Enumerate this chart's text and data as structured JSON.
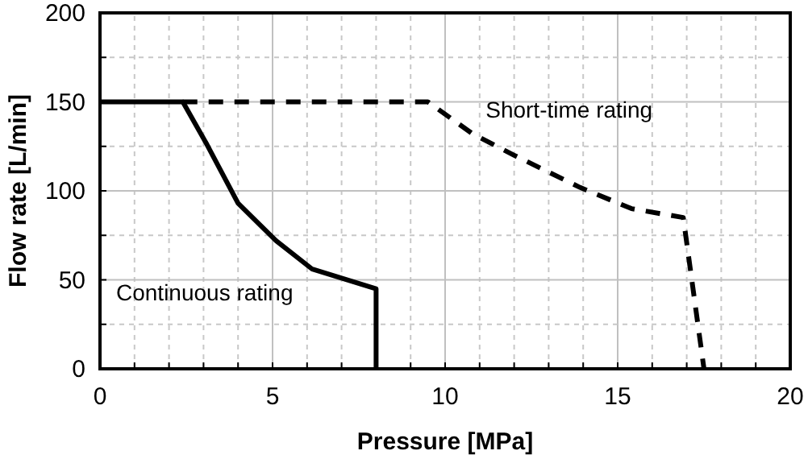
{
  "chart_data": {
    "type": "line",
    "xlabel": "Pressure [MPa]",
    "ylabel": "Flow rate [L/min]",
    "xlim": [
      0,
      20
    ],
    "ylim": [
      0,
      200
    ],
    "xticks": [
      0,
      {
        "value": 1,
        "label": null
      },
      {
        "value": 2,
        "label": null
      },
      {
        "value": 3,
        "label": null
      },
      {
        "value": 4,
        "label": null
      },
      5,
      {
        "value": 6,
        "label": null
      },
      {
        "value": 7,
        "label": null
      },
      {
        "value": 8,
        "label": null
      },
      {
        "value": 9,
        "label": null
      },
      10,
      {
        "value": 11,
        "label": null
      },
      {
        "value": 12,
        "label": null
      },
      {
        "value": 13,
        "label": null
      },
      {
        "value": 14,
        "label": null
      },
      15,
      {
        "value": 16,
        "label": null
      },
      {
        "value": 17,
        "label": null
      },
      {
        "value": 18,
        "label": null
      },
      {
        "value": 19,
        "label": null
      },
      20
    ],
    "yticks": [
      0,
      {
        "value": 25,
        "label": null
      },
      50,
      {
        "value": 75,
        "label": null
      },
      100,
      {
        "value": 125,
        "label": null
      },
      150,
      {
        "value": 175,
        "label": null
      },
      200
    ],
    "grid": true,
    "legend": false,
    "marker": "none",
    "series": [
      {
        "name": "Continuous rating",
        "color": "#000000",
        "line_style": "solid",
        "x": [
          0,
          2.4,
          3.1,
          4.0,
          5.1,
          6.15,
          8.0,
          8.0
        ],
        "values": [
          150,
          150,
          126,
          93,
          72,
          56,
          45,
          0
        ]
      },
      {
        "name": "Short-time rating",
        "color": "#000000",
        "line_style": "dashed",
        "x": [
          2.4,
          9.5,
          10.8,
          12.0,
          13.9,
          15.4,
          16.9,
          17.5
        ],
        "values": [
          150,
          150,
          132,
          120,
          102,
          90,
          85,
          0
        ]
      }
    ]
  }
}
